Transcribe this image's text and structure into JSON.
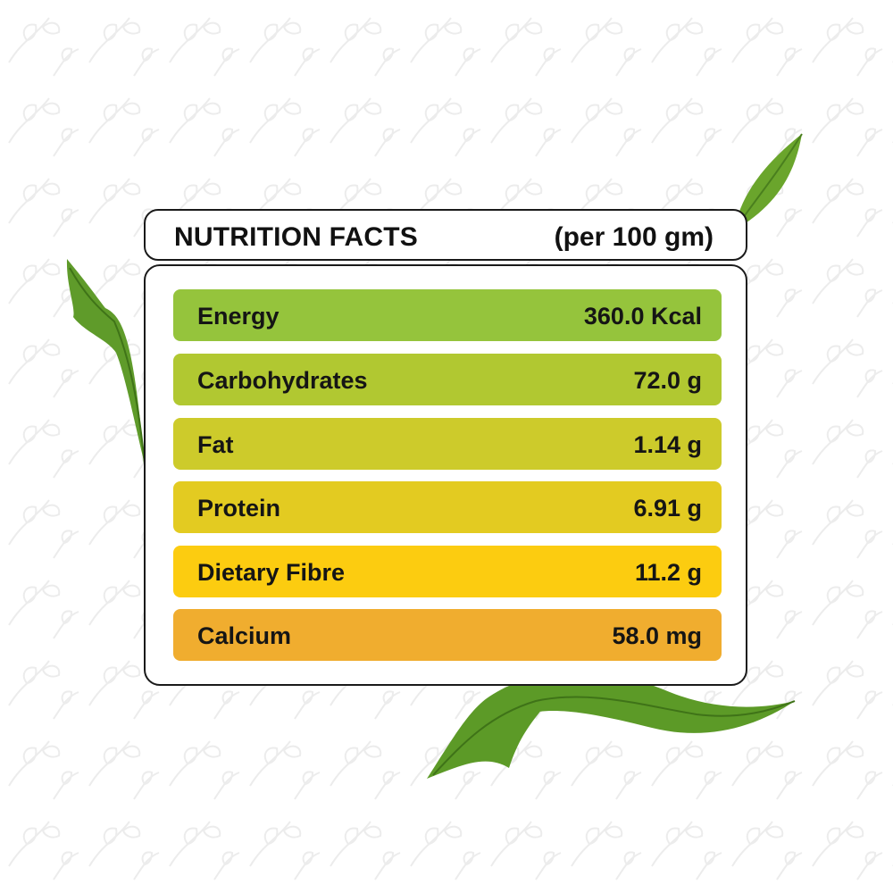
{
  "header": {
    "title": "NUTRITION FACTS",
    "unit": "(per 100 gm)"
  },
  "rows": [
    {
      "label": "Energy",
      "value": "360.0 Kcal",
      "color": "#95c43c"
    },
    {
      "label": "Carbohydrates",
      "value": "72.0 g",
      "color": "#b1c831"
    },
    {
      "label": "Fat",
      "value": "1.14 g",
      "color": "#cdcb2b"
    },
    {
      "label": "Protein",
      "value": "6.91 g",
      "color": "#e3cb21"
    },
    {
      "label": "Dietary Fibre",
      "value": "11.2 g",
      "color": "#fccc10"
    },
    {
      "label": "Calcium",
      "value": "58.0 mg",
      "color": "#f0ad2f"
    }
  ],
  "colors": {
    "leaf": "#5f9b2a",
    "leaf_light": "#8cc63f",
    "pattern": "#ececec"
  }
}
